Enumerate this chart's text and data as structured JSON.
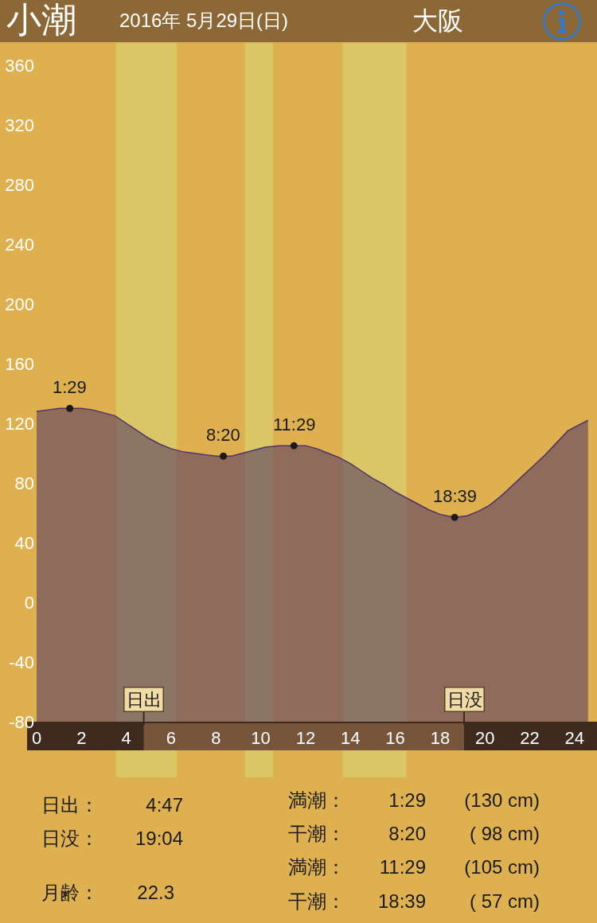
{
  "chart_data": {
    "type": "area",
    "title": "小潮",
    "subtitle": "2016年 5月29日(日)",
    "annotations": [
      "大阪",
      "日出：",
      "4:47",
      "日没：",
      "19:04",
      "月齢：",
      "22.3",
      "満潮：",
      "1:29",
      "(130 cm)",
      "干潮：",
      "8:20",
      "( 98 cm)",
      "満潮：",
      "11:29",
      "(105 cm)",
      "干潮：",
      "18:39",
      "( 57 cm)",
      {
        "text": "1:29",
        "x": 1.48,
        "y": 130
      },
      {
        "text": "8:20",
        "x": 8.33,
        "y": 98
      },
      {
        "text": "11:29",
        "x": 11.48,
        "y": 105
      },
      {
        "text": "18:39",
        "x": 18.65,
        "y": 57
      }
    ],
    "series": [
      {
        "color": "#4e3366",
        "x": [
          0,
          0.5,
          1,
          1.48,
          2,
          2.5,
          3,
          3.5,
          4,
          4.5,
          5,
          5.5,
          6,
          6.5,
          7,
          7.5,
          8,
          8.33,
          8.7,
          9.2,
          9.7,
          10.2,
          10.8,
          11.48,
          12,
          12.5,
          13,
          13.5,
          14,
          14.5,
          15,
          15.5,
          16,
          16.5,
          17,
          17.5,
          18,
          18.65,
          19.2,
          19.7,
          20.2,
          20.7,
          21.2,
          21.7,
          22.2,
          22.7,
          23.2,
          23.7,
          24.2,
          24.6
        ],
        "values": [
          128,
          129,
          130,
          130,
          130,
          129,
          127,
          125,
          120,
          115,
          110,
          106,
          103,
          101,
          100,
          99,
          98,
          98,
          98,
          100,
          102,
          104,
          105,
          105,
          105,
          103,
          100,
          97,
          93,
          88,
          83,
          79,
          74,
          70,
          66,
          62,
          59,
          57,
          58,
          61,
          65,
          71,
          78,
          85,
          92,
          99,
          107,
          115,
          119,
          122
        ]
      },
      {
        "type": "scatter",
        "color": "#1e1a16",
        "marker": "circle",
        "x": [
          1.48,
          8.33,
          11.48,
          18.65
        ],
        "values": [
          130,
          98,
          105,
          57
        ]
      }
    ],
    "ref_lines": [
      {
        "axis": "x",
        "value": 4.78,
        "label": "日出",
        "color": "#3a2a1a"
      },
      {
        "axis": "x",
        "value": 19.07,
        "label": "日没",
        "color": "#3a2a1a"
      }
    ],
    "bands": [
      {
        "axis": "x",
        "from": 3.55,
        "to": 6.25,
        "color": "#dac667"
      },
      {
        "axis": "x",
        "from": 9.3,
        "to": 10.55,
        "color": "#dac667"
      },
      {
        "axis": "x",
        "from": 13.65,
        "to": 16.5,
        "color": "#dac667"
      }
    ],
    "xlim": [
      0,
      25
    ],
    "xticks": [
      0,
      2,
      4,
      6,
      8,
      10,
      12,
      14,
      16,
      18,
      20,
      22,
      24
    ],
    "ylim": [
      -80,
      360
    ],
    "yticks": [
      -80,
      -40,
      0,
      40,
      80,
      120,
      160,
      200,
      240,
      280,
      320,
      360
    ]
  }
}
